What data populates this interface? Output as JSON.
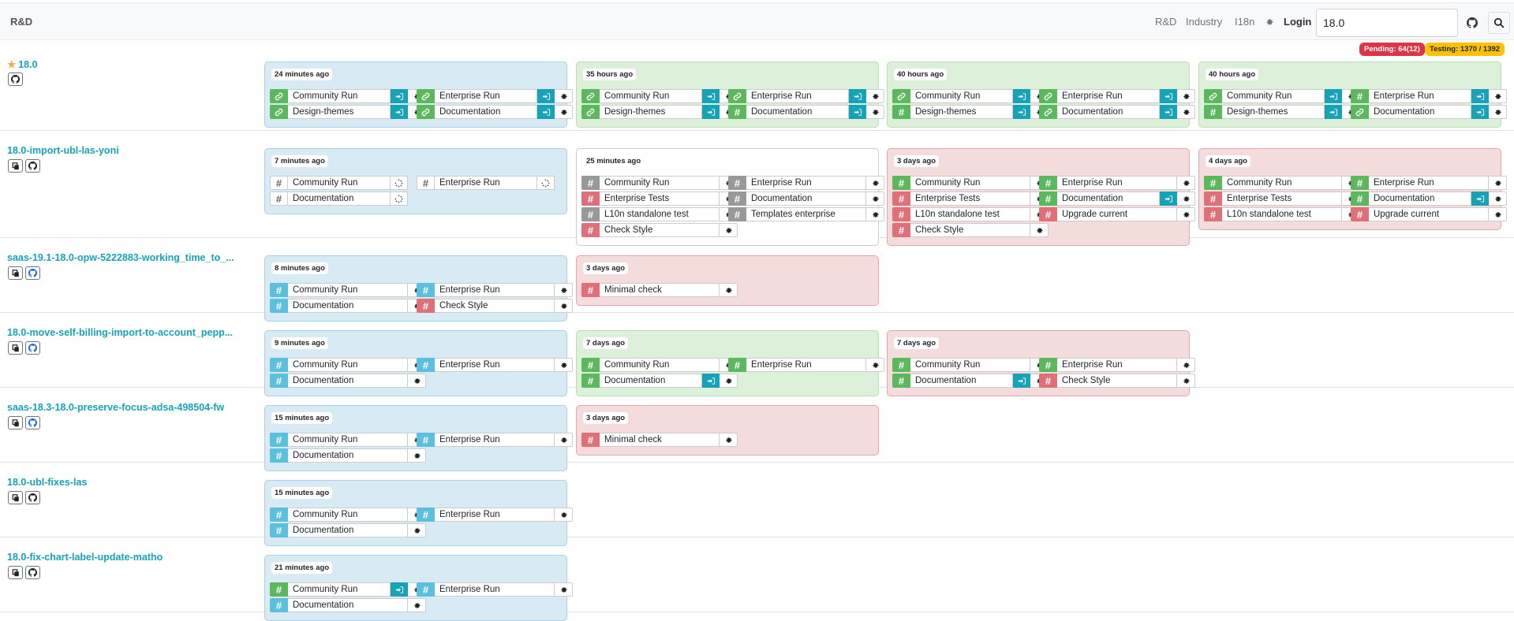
{
  "header": {
    "brand": "R&D",
    "nav": [
      "R&D",
      "Industry",
      "I18n"
    ],
    "login": "Login",
    "search_value": "18.0"
  },
  "badges": {
    "pending": "Pending: 64(12)",
    "testing": "Testing: 1370 / 1392"
  },
  "colors": {
    "success": "#5cb85c",
    "running": "#5bc0de",
    "failed": "#e07077",
    "skipped": "#999999",
    "login": "#17a2b8"
  },
  "bundles": [
    {
      "name": "18.0",
      "sticky": true,
      "batches": [
        {
          "time": "24 minutes ago",
          "state": "blue",
          "slots": [
            {
              "name": "Community Run",
              "state": "green",
              "icon": "link",
              "login": true
            },
            {
              "name": "Enterprise Run",
              "state": "green",
              "icon": "link",
              "login": true
            },
            {
              "name": "Design-themes",
              "state": "green",
              "icon": "link",
              "login": true
            },
            {
              "name": "Documentation",
              "state": "green",
              "icon": "link",
              "login": true
            }
          ]
        },
        {
          "time": "35 hours ago",
          "state": "green",
          "slots": [
            {
              "name": "Community Run",
              "state": "green",
              "icon": "link",
              "login": true
            },
            {
              "name": "Enterprise Run",
              "state": "green",
              "icon": "link",
              "login": true
            },
            {
              "name": "Design-themes",
              "state": "green",
              "icon": "link",
              "login": true
            },
            {
              "name": "Documentation",
              "state": "green",
              "icon": "hash",
              "login": true
            }
          ]
        },
        {
          "time": "40 hours ago",
          "state": "green",
          "slots": [
            {
              "name": "Community Run",
              "state": "green",
              "icon": "link",
              "login": true
            },
            {
              "name": "Enterprise Run",
              "state": "green",
              "icon": "link",
              "login": true
            },
            {
              "name": "Design-themes",
              "state": "green",
              "icon": "hash",
              "login": true
            },
            {
              "name": "Documentation",
              "state": "green",
              "icon": "link",
              "login": true
            }
          ]
        },
        {
          "time": "40 hours ago",
          "state": "green",
          "slots": [
            {
              "name": "Community Run",
              "state": "green",
              "icon": "link",
              "login": true
            },
            {
              "name": "Enterprise Run",
              "state": "green",
              "icon": "hash",
              "login": true
            },
            {
              "name": "Design-themes",
              "state": "green",
              "icon": "hash",
              "login": true
            },
            {
              "name": "Documentation",
              "state": "green",
              "icon": "link",
              "login": true
            }
          ]
        }
      ]
    },
    {
      "name": "18.0-import-ubl-las-yoni",
      "batches": [
        {
          "time": "7 minutes ago",
          "state": "blue",
          "slots": [
            {
              "name": "Community Run",
              "state": "white",
              "icon": "hash",
              "spin": true
            },
            {
              "name": "Enterprise Run",
              "state": "white",
              "icon": "hash",
              "spin": true
            },
            {
              "name": "Documentation",
              "state": "white",
              "icon": "hash",
              "spin": true
            }
          ]
        },
        {
          "time": "25 minutes ago",
          "state": "white",
          "slots": [
            {
              "name": "Community Run",
              "state": "gray",
              "icon": "hash"
            },
            {
              "name": "Enterprise Run",
              "state": "gray",
              "icon": "hash"
            },
            {
              "name": "Enterprise Tests",
              "state": "red",
              "icon": "hash"
            },
            {
              "name": "Documentation",
              "state": "gray",
              "icon": "hash"
            },
            {
              "name": "L10n standalone test",
              "state": "gray",
              "icon": "hash"
            },
            {
              "name": "Templates enterprise",
              "state": "gray",
              "icon": "hash"
            },
            {
              "name": "Check Style",
              "state": "red",
              "icon": "hash"
            }
          ]
        },
        {
          "time": "3 days ago",
          "state": "red",
          "slots": [
            {
              "name": "Community Run",
              "state": "green",
              "icon": "hash"
            },
            {
              "name": "Enterprise Run",
              "state": "green",
              "icon": "hash"
            },
            {
              "name": "Enterprise Tests",
              "state": "red",
              "icon": "hash"
            },
            {
              "name": "Documentation",
              "state": "green",
              "icon": "hash",
              "login": true
            },
            {
              "name": "L10n standalone test",
              "state": "red",
              "icon": "hash"
            },
            {
              "name": "Upgrade current",
              "state": "red",
              "icon": "hash"
            },
            {
              "name": "Check Style",
              "state": "red",
              "icon": "hash"
            }
          ]
        },
        {
          "time": "4 days ago",
          "state": "red",
          "slots": [
            {
              "name": "Community Run",
              "state": "green",
              "icon": "hash"
            },
            {
              "name": "Enterprise Run",
              "state": "green",
              "icon": "hash"
            },
            {
              "name": "Enterprise Tests",
              "state": "red",
              "icon": "hash"
            },
            {
              "name": "Documentation",
              "state": "green",
              "icon": "hash",
              "login": true
            },
            {
              "name": "L10n standalone test",
              "state": "red",
              "icon": "hash"
            },
            {
              "name": "Upgrade current",
              "state": "red",
              "icon": "hash"
            }
          ]
        }
      ]
    },
    {
      "name": "saas-19.1-18.0-opw-5222883-working_time_to_...",
      "batches": [
        {
          "time": "8 minutes ago",
          "state": "blue",
          "slots": [
            {
              "name": "Community Run",
              "state": "blue",
              "icon": "hash"
            },
            {
              "name": "Enterprise Run",
              "state": "blue",
              "icon": "hash"
            },
            {
              "name": "Documentation",
              "state": "blue",
              "icon": "hash"
            },
            {
              "name": "Check Style",
              "state": "red",
              "icon": "hash"
            }
          ]
        },
        {
          "time": "3 days ago",
          "state": "red",
          "slots": [
            {
              "name": "Minimal check",
              "state": "red",
              "icon": "hash"
            }
          ]
        }
      ]
    },
    {
      "name": "18.0-move-self-billing-import-to-account_pepp...",
      "batches": [
        {
          "time": "9 minutes ago",
          "state": "blue",
          "slots": [
            {
              "name": "Community Run",
              "state": "blue",
              "icon": "hash"
            },
            {
              "name": "Enterprise Run",
              "state": "blue",
              "icon": "hash"
            },
            {
              "name": "Documentation",
              "state": "blue",
              "icon": "hash"
            }
          ]
        },
        {
          "time": "7 days ago",
          "state": "green",
          "slots": [
            {
              "name": "Community Run",
              "state": "green",
              "icon": "hash"
            },
            {
              "name": "Enterprise Run",
              "state": "green",
              "icon": "hash"
            },
            {
              "name": "Documentation",
              "state": "green",
              "icon": "hash",
              "login": true
            }
          ]
        },
        {
          "time": "7 days ago",
          "state": "red",
          "slots": [
            {
              "name": "Community Run",
              "state": "green",
              "icon": "hash"
            },
            {
              "name": "Enterprise Run",
              "state": "green",
              "icon": "hash"
            },
            {
              "name": "Documentation",
              "state": "green",
              "icon": "hash",
              "login": true
            },
            {
              "name": "Check Style",
              "state": "red",
              "icon": "hash"
            }
          ]
        }
      ]
    },
    {
      "name": "saas-18.3-18.0-preserve-focus-adsa-498504-fw",
      "batches": [
        {
          "time": "15 minutes ago",
          "state": "blue",
          "slots": [
            {
              "name": "Community Run",
              "state": "blue",
              "icon": "hash"
            },
            {
              "name": "Enterprise Run",
              "state": "blue",
              "icon": "hash"
            },
            {
              "name": "Documentation",
              "state": "blue",
              "icon": "hash"
            }
          ]
        },
        {
          "time": "3 days ago",
          "state": "red",
          "slots": [
            {
              "name": "Minimal check",
              "state": "red",
              "icon": "hash"
            }
          ]
        }
      ]
    },
    {
      "name": "18.0-ubl-fixes-las",
      "batches": [
        {
          "time": "15 minutes ago",
          "state": "blue",
          "slots": [
            {
              "name": "Community Run",
              "state": "blue",
              "icon": "hash"
            },
            {
              "name": "Enterprise Run",
              "state": "blue",
              "icon": "hash"
            },
            {
              "name": "Documentation",
              "state": "blue",
              "icon": "hash"
            }
          ]
        }
      ]
    },
    {
      "name": "18.0-fix-chart-label-update-matho",
      "batches": [
        {
          "time": "21 minutes ago",
          "state": "blue",
          "slots": [
            {
              "name": "Community Run",
              "state": "green",
              "icon": "hash",
              "login": true
            },
            {
              "name": "Enterprise Run",
              "state": "blue",
              "icon": "hash"
            },
            {
              "name": "Documentation",
              "state": "blue",
              "icon": "hash"
            }
          ]
        }
      ]
    }
  ]
}
